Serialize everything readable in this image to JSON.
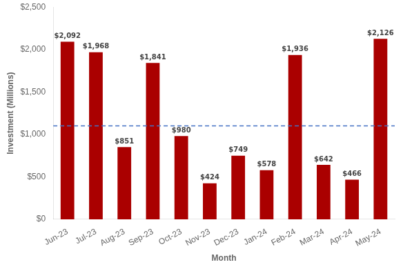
{
  "chart_data": {
    "type": "bar",
    "categories": [
      "Jun-23",
      "Jul-23",
      "Aug-23",
      "Sep-23",
      "Oct-23",
      "Nov-23",
      "Dec-23",
      "Jan-24",
      "Feb-24",
      "Mar-24",
      "Apr-24",
      "May-24"
    ],
    "values": [
      2092,
      1968,
      851,
      1841,
      980,
      424,
      749,
      578,
      1936,
      642,
      466,
      2126
    ],
    "value_labels": [
      "$2,092",
      "$1,968",
      "$851",
      "$1,841",
      "$980",
      "$424",
      "$749",
      "$578",
      "$1,936",
      "$642",
      "$466",
      "$2,126"
    ],
    "data_labels": true,
    "color": "#AA0000",
    "xlabel": "Month",
    "ylabel": "Investment (Millions)",
    "ylim": [
      0,
      2500
    ],
    "yticks": [
      {
        "value": 0,
        "label": "$0"
      },
      {
        "value": 500,
        "label": "$500"
      },
      {
        "value": 1000,
        "label": "$1,000"
      },
      {
        "value": 1500,
        "label": "$1,500"
      },
      {
        "value": 2000,
        "label": "$2,000"
      },
      {
        "value": 2500,
        "label": "$2,500"
      }
    ],
    "reference_line": {
      "value": 1100,
      "color": "#4472C4",
      "line_style": "dashed"
    },
    "grid": false
  }
}
